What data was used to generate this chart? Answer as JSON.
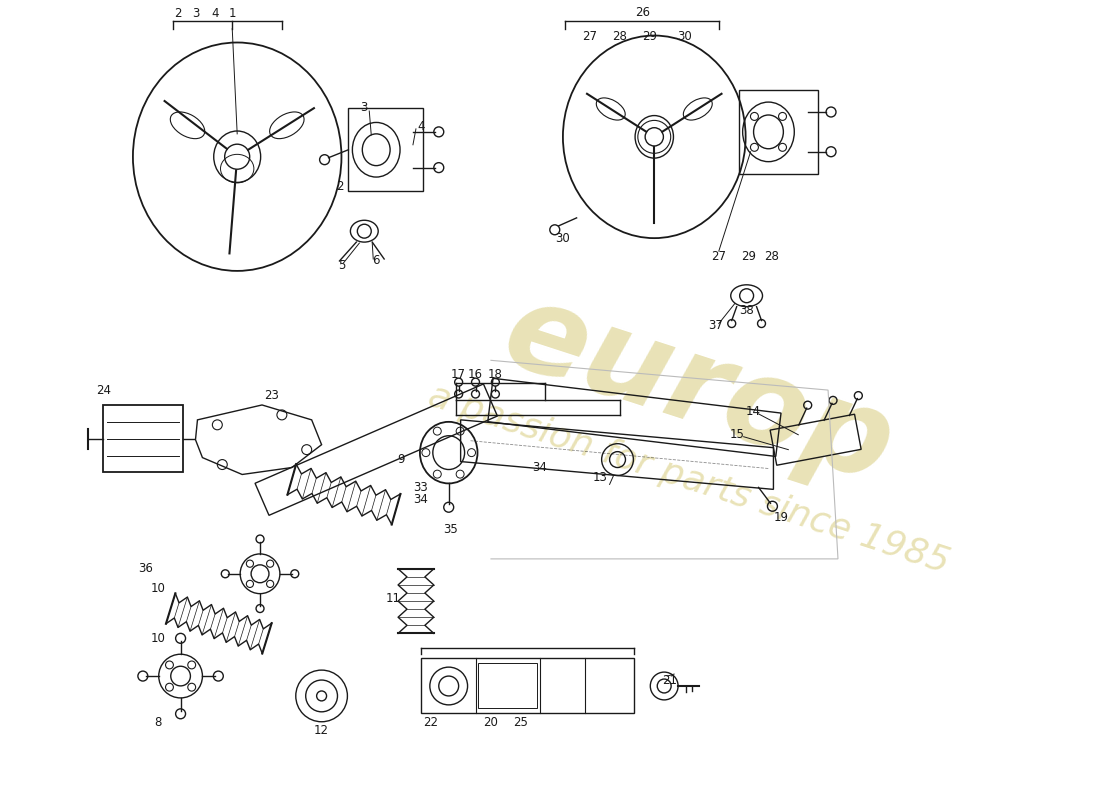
{
  "bg_color": "#ffffff",
  "line_color": "#1a1a1a",
  "watermark_color": "#c8b84a",
  "watermark_alpha": 0.4,
  "fig_w": 11.0,
  "fig_h": 8.0,
  "dpi": 100
}
